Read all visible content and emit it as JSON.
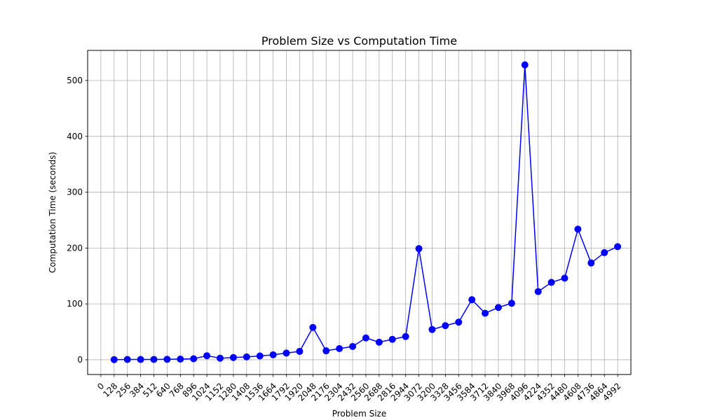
{
  "chart_data": {
    "type": "line",
    "title": "Problem Size vs Computation Time",
    "xlabel": "Problem Size",
    "ylabel": "Computation Time (seconds)",
    "grid": true,
    "x_ticks": [
      0,
      128,
      256,
      384,
      512,
      640,
      768,
      896,
      1024,
      1152,
      1280,
      1408,
      1536,
      1664,
      1792,
      1920,
      2048,
      2176,
      2304,
      2432,
      2560,
      2688,
      2816,
      2944,
      3072,
      3200,
      3328,
      3456,
      3584,
      3712,
      3840,
      3968,
      4096,
      4224,
      4352,
      4480,
      4608,
      4736,
      4864,
      4992
    ],
    "y_ticks": [
      0,
      100,
      200,
      300,
      400,
      500
    ],
    "xlim": [
      -128,
      5120
    ],
    "ylim": [
      -26.4,
      553.9
    ],
    "series": [
      {
        "color": "#0000ff",
        "marker": "circle",
        "x": [
          128,
          256,
          384,
          512,
          640,
          768,
          896,
          1024,
          1152,
          1280,
          1408,
          1536,
          1664,
          1792,
          1920,
          2048,
          2176,
          2304,
          2432,
          2560,
          2688,
          2816,
          2944,
          3072,
          3200,
          3328,
          3456,
          3584,
          3712,
          3840,
          3968,
          4096,
          4224,
          4352,
          4480,
          4608,
          4736,
          4864,
          4992
        ],
        "y": [
          0.3,
          0.5,
          0.5,
          0.6,
          0.8,
          1.2,
          1.8,
          7.2,
          2.8,
          4.0,
          5.1,
          6.8,
          8.9,
          12.0,
          15.0,
          57.9,
          16.0,
          20.0,
          23.8,
          39.1,
          31.4,
          36.6,
          41.6,
          199.0,
          54.1,
          61.0,
          67.3,
          107.5,
          83.3,
          93.6,
          101.2,
          528.0,
          122.0,
          138.5,
          146.1,
          233.8,
          173.3,
          191.8,
          202.5
        ]
      }
    ]
  }
}
